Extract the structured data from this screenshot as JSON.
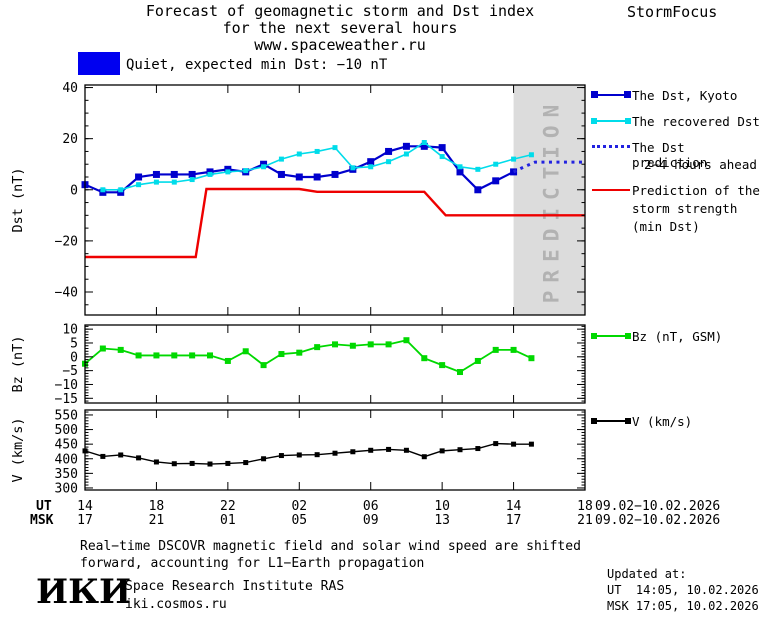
{
  "header": {
    "title_line1": "Forecast of geomagnetic storm and Dst index",
    "title_line2": "for the next several hours",
    "title_line3": "www.spaceweather.ru",
    "brand": "StormFocus"
  },
  "status": {
    "label": "Quiet, expected min Dst: −10 nT"
  },
  "legend": {
    "dst_kyoto": "The Dst, Kyoto",
    "recovered": "The recovered Dst",
    "prediction_line1": "The Dst prediction",
    "prediction_line2": "2−4 hours ahead",
    "storm_line1": "Prediction of the",
    "storm_line2": "storm strength",
    "storm_line3": "(min Dst)",
    "bz": "Bz (nT, GSM)",
    "v": "V (km/s)"
  },
  "xaxis": {
    "ut_label": "UT",
    "msk_label": "MSK",
    "ut_ticks": [
      "14",
      "18",
      "22",
      "02",
      "06",
      "10",
      "14",
      "18"
    ],
    "msk_ticks": [
      "17",
      "21",
      "01",
      "05",
      "09",
      "13",
      "17",
      "21"
    ],
    "ut_date": "09.02−10.02.2026",
    "msk_date": "09.02−10.02.2026"
  },
  "footer": {
    "note_line1": "Real−time DSCOVR magnetic field and solar wind speed are shifted",
    "note_line2": "forward, accounting for L1−Earth propagation",
    "updated_label": "Updated at:",
    "updated_ut": "UT  14:05, 10.02.2026",
    "updated_msk": "MSK 17:05, 10.02.2026",
    "logo": "ИКИ",
    "institute": "Space Research Institute RAS",
    "site": "iki.cosmos.ru"
  },
  "colors": {
    "quiet": "#0000f0",
    "dst_kyoto": "#0000cd",
    "recovered": "#00dcea",
    "prediction": "#2222e0",
    "storm": "#ee0000",
    "bz": "#00d800",
    "v": "#000000",
    "band": "#dcdcdc",
    "band_text": "#b2b2b2"
  },
  "chart_data": [
    {
      "name": "dst-panel",
      "type": "line",
      "ylabel": "Dst (nT)",
      "ylim": [
        -49,
        41
      ],
      "yticks": [
        40,
        20,
        0,
        -20,
        -40
      ],
      "ytick_minor": 5,
      "xlim": [
        0,
        28
      ],
      "xtick_major": 4,
      "x_axis_note": "hours from 14:00 UT 09.02.2026 to 18:00 UT 10.02.2026",
      "band": {
        "x0": 24,
        "x1": 28,
        "label": "PREDICTION"
      },
      "series": [
        {
          "key": "dst_kyoto",
          "name": "The Dst, Kyoto",
          "color": "#0000cd",
          "width": 2.2,
          "marker": 7,
          "points": [
            [
              0,
              2
            ],
            [
              1,
              -1
            ],
            [
              2,
              -1
            ],
            [
              3,
              5
            ],
            [
              4,
              6
            ],
            [
              5,
              6
            ],
            [
              6,
              6
            ],
            [
              7,
              7
            ],
            [
              8,
              8
            ],
            [
              9,
              7
            ],
            [
              10,
              10
            ],
            [
              11,
              6
            ],
            [
              12,
              5
            ],
            [
              13,
              5
            ],
            [
              14,
              6
            ],
            [
              15,
              8
            ],
            [
              16,
              11
            ],
            [
              17,
              15
            ],
            [
              18,
              17
            ],
            [
              19,
              17
            ],
            [
              20,
              16.5
            ],
            [
              21,
              7
            ],
            [
              22,
              0
            ],
            [
              23,
              3.5
            ],
            [
              24,
              7
            ]
          ]
        },
        {
          "key": "recovered",
          "name": "The recovered Dst",
          "color": "#00dcea",
          "width": 1.6,
          "marker": 5,
          "points": [
            [
              1,
              0
            ],
            [
              2,
              0
            ],
            [
              3,
              2
            ],
            [
              4,
              3
            ],
            [
              5,
              3
            ],
            [
              6,
              4
            ],
            [
              7,
              6
            ],
            [
              8,
              7
            ],
            [
              9,
              7.5
            ],
            [
              10,
              9
            ],
            [
              11,
              12
            ],
            [
              12,
              14
            ],
            [
              13,
              15
            ],
            [
              14,
              16.5
            ],
            [
              15,
              8.6
            ],
            [
              16,
              9
            ],
            [
              17,
              11
            ],
            [
              18,
              14
            ],
            [
              19,
              18.5
            ],
            [
              20,
              13
            ],
            [
              21,
              9
            ],
            [
              22,
              8
            ],
            [
              23,
              10
            ],
            [
              24,
              12
            ],
            [
              25,
              13.7
            ]
          ]
        },
        {
          "key": "prediction",
          "name": "The Dst prediction 2−4 hours ahead",
          "color": "#2222e0",
          "width": 3,
          "dash": "3 4.5",
          "marker": 0,
          "points": [
            [
              24,
              7
            ],
            [
              24.6,
              9
            ],
            [
              25.2,
              10.8
            ],
            [
              27.9,
              10.8
            ]
          ]
        },
        {
          "key": "storm",
          "name": "Prediction of the storm strength (min Dst)",
          "color": "#ee0000",
          "width": 2.4,
          "marker": 0,
          "points": [
            [
              0,
              -26.3
            ],
            [
              6.2,
              -26.3
            ],
            [
              6.8,
              0.3
            ],
            [
              12,
              0.3
            ],
            [
              13,
              -0.8
            ],
            [
              19,
              -0.8
            ],
            [
              20.2,
              -10
            ],
            [
              28,
              -10
            ]
          ]
        }
      ]
    },
    {
      "name": "bz-panel",
      "type": "line",
      "ylabel": "Bz (nT)",
      "ylim": [
        -16.7,
        11.5
      ],
      "yticks": [
        10,
        5,
        0,
        -5,
        -10,
        -15
      ],
      "ytick_minor": 1,
      "xlim": [
        0,
        28
      ],
      "xtick_major": 4,
      "series": [
        {
          "key": "bz",
          "name": "Bz (nT, GSM)",
          "color": "#00d800",
          "width": 1.8,
          "marker": 6,
          "points": [
            [
              0,
              -2.5
            ],
            [
              1,
              3
            ],
            [
              2,
              2.5
            ],
            [
              3,
              0.5
            ],
            [
              4,
              0.5
            ],
            [
              5,
              0.5
            ],
            [
              6,
              0.5
            ],
            [
              7,
              0.5
            ],
            [
              8,
              -1.5
            ],
            [
              9,
              2
            ],
            [
              10,
              -3
            ],
            [
              11,
              1
            ],
            [
              12,
              1.5
            ],
            [
              13,
              3.5
            ],
            [
              14,
              4.5
            ],
            [
              15,
              4
            ],
            [
              16,
              4.5
            ],
            [
              17,
              4.5
            ],
            [
              18,
              6
            ],
            [
              19,
              -0.5
            ],
            [
              20,
              -3
            ],
            [
              21,
              -5.5
            ],
            [
              22,
              -1.5
            ],
            [
              23,
              2.5
            ],
            [
              24,
              2.5
            ],
            [
              25,
              -0.5
            ]
          ]
        }
      ]
    },
    {
      "name": "v-panel",
      "type": "line",
      "ylabel": "V (km/s)",
      "ylim": [
        293,
        567
      ],
      "yticks": [
        550,
        500,
        450,
        400,
        350,
        300
      ],
      "ytick_minor": 10,
      "xlim": [
        0,
        28
      ],
      "xtick_major": 4,
      "series": [
        {
          "key": "v",
          "name": "V (km/s)",
          "color": "#000000",
          "width": 1.4,
          "marker": 5,
          "points": [
            [
              0,
              427
            ],
            [
              1,
              408
            ],
            [
              2,
              413
            ],
            [
              3,
              403
            ],
            [
              4,
              389
            ],
            [
              5,
              383
            ],
            [
              6,
              384
            ],
            [
              7,
              382
            ],
            [
              8,
              384
            ],
            [
              9,
              387
            ],
            [
              10,
              400
            ],
            [
              11,
              411
            ],
            [
              12,
              413
            ],
            [
              13,
              414
            ],
            [
              14,
              419
            ],
            [
              15,
              424
            ],
            [
              16,
              429
            ],
            [
              17,
              432
            ],
            [
              18,
              429
            ],
            [
              19,
              407
            ],
            [
              20,
              427
            ],
            [
              21,
              431
            ],
            [
              22,
              435
            ],
            [
              23,
              452
            ],
            [
              24,
              450
            ],
            [
              25,
              450
            ]
          ]
        }
      ]
    }
  ]
}
